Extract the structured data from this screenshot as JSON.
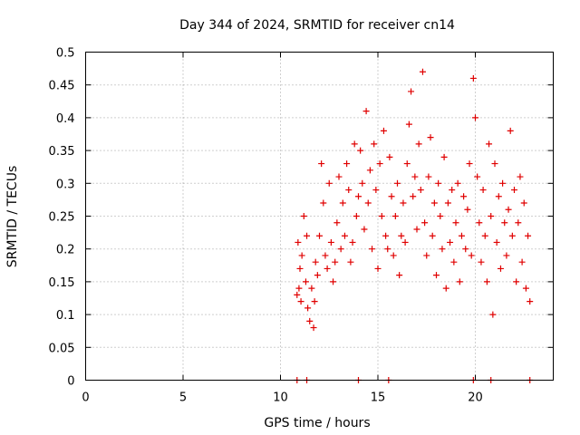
{
  "chart_data": {
    "type": "scatter",
    "title": "Day 344 of 2024, SRMTID for receiver cn14",
    "xlabel": "GPS time / hours",
    "ylabel": "SRMTID / TECUs",
    "xlim": [
      0,
      24
    ],
    "ylim": [
      0,
      0.5
    ],
    "xticks": [
      0,
      5,
      10,
      15,
      20
    ],
    "xtick_labels": [
      "0",
      "5",
      "10",
      "15",
      "20"
    ],
    "yticks": [
      0,
      0.05,
      0.1,
      0.15,
      0.2,
      0.25,
      0.3,
      0.35,
      0.4,
      0.45,
      0.5
    ],
    "ytick_labels": [
      "0",
      "0.05",
      "0.1",
      "0.15",
      "0.2",
      "0.25",
      "0.3",
      "0.35",
      "0.4",
      "0.45",
      "0.5"
    ],
    "grid": true,
    "marker": "+",
    "marker_color": "#e00000",
    "series": [
      {
        "name": "SRMTID",
        "x": [
          10.85,
          10.9,
          10.95,
          11.0,
          11.05,
          11.1,
          11.2,
          11.3,
          11.35,
          11.4,
          11.5,
          11.6,
          11.7,
          11.75,
          11.8,
          11.9,
          12.0,
          12.1,
          12.2,
          12.3,
          12.4,
          12.5,
          12.6,
          12.7,
          12.8,
          12.9,
          13.0,
          13.1,
          13.2,
          13.3,
          13.4,
          13.5,
          13.6,
          13.7,
          13.8,
          13.9,
          14.0,
          14.1,
          14.2,
          14.3,
          14.4,
          14.5,
          14.6,
          14.7,
          14.8,
          14.9,
          15.0,
          15.1,
          15.2,
          15.3,
          15.4,
          15.5,
          15.6,
          15.7,
          15.8,
          15.9,
          16.0,
          16.1,
          16.2,
          16.3,
          16.4,
          16.5,
          16.6,
          16.7,
          16.8,
          16.9,
          17.0,
          17.1,
          17.2,
          17.3,
          17.4,
          17.5,
          17.6,
          17.7,
          17.8,
          17.9,
          18.0,
          18.1,
          18.2,
          18.3,
          18.4,
          18.5,
          18.6,
          18.7,
          18.8,
          18.9,
          19.0,
          19.1,
          19.2,
          19.3,
          19.4,
          19.5,
          19.6,
          19.7,
          19.8,
          19.9,
          20.0,
          20.1,
          20.2,
          20.3,
          20.4,
          20.5,
          20.6,
          20.7,
          20.8,
          20.9,
          21.0,
          21.1,
          21.2,
          21.3,
          21.4,
          21.5,
          21.6,
          21.7,
          21.8,
          21.9,
          22.0,
          22.1,
          22.2,
          22.3,
          22.4,
          22.5,
          22.6,
          22.7,
          22.8
        ],
        "y": [
          0.13,
          0.21,
          0.14,
          0.17,
          0.12,
          0.19,
          0.25,
          0.15,
          0.22,
          0.11,
          0.09,
          0.14,
          0.08,
          0.12,
          0.18,
          0.16,
          0.22,
          0.33,
          0.27,
          0.19,
          0.17,
          0.3,
          0.21,
          0.15,
          0.18,
          0.24,
          0.31,
          0.2,
          0.27,
          0.22,
          0.33,
          0.29,
          0.18,
          0.21,
          0.36,
          0.25,
          0.28,
          0.35,
          0.3,
          0.23,
          0.41,
          0.27,
          0.32,
          0.2,
          0.36,
          0.29,
          0.17,
          0.33,
          0.25,
          0.38,
          0.22,
          0.2,
          0.34,
          0.28,
          0.19,
          0.25,
          0.3,
          0.16,
          0.22,
          0.27,
          0.21,
          0.33,
          0.39,
          0.44,
          0.28,
          0.31,
          0.23,
          0.36,
          0.29,
          0.47,
          0.24,
          0.19,
          0.31,
          0.37,
          0.22,
          0.27,
          0.16,
          0.3,
          0.25,
          0.2,
          0.34,
          0.14,
          0.27,
          0.21,
          0.29,
          0.18,
          0.24,
          0.3,
          0.15,
          0.22,
          0.28,
          0.2,
          0.26,
          0.33,
          0.19,
          0.46,
          0.4,
          0.31,
          0.24,
          0.18,
          0.29,
          0.22,
          0.15,
          0.36,
          0.25,
          0.1,
          0.33,
          0.21,
          0.28,
          0.17,
          0.3,
          0.24,
          0.19,
          0.26,
          0.38,
          0.22,
          0.29,
          0.15,
          0.24,
          0.31,
          0.18,
          0.27,
          0.14,
          0.22,
          0.12
        ],
        "ticks_at_zero": [
          10.85,
          11.35,
          14.0,
          15.55,
          19.9,
          20.8,
          22.8
        ]
      }
    ]
  }
}
